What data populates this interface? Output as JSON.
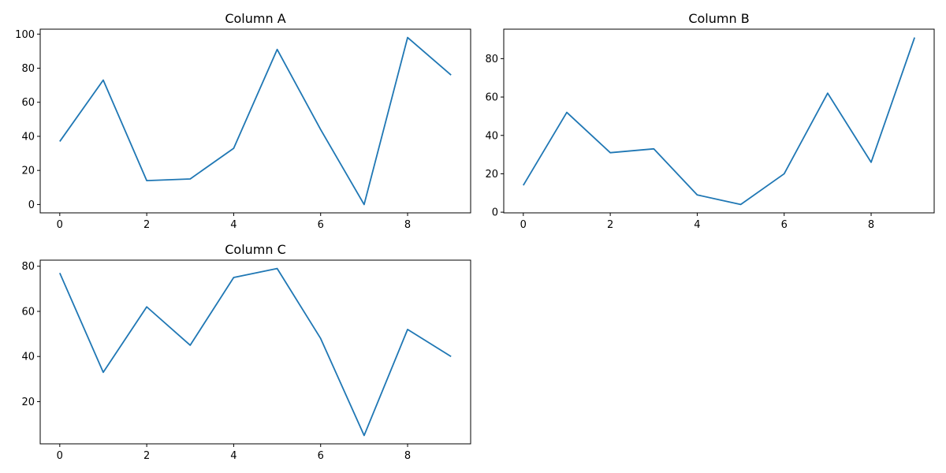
{
  "colors": {
    "line": "#1f77b4"
  },
  "chart_data": [
    {
      "type": "line",
      "title": "Column A",
      "x": [
        0,
        1,
        2,
        3,
        4,
        5,
        6,
        7,
        8,
        9
      ],
      "series": [
        {
          "values": [
            37,
            73,
            14,
            15,
            33,
            91,
            44,
            0,
            98,
            76
          ]
        }
      ],
      "xlim": [
        -0.45,
        9.45
      ],
      "ylim": [
        -4.9,
        102.9
      ],
      "xticks": [
        0,
        2,
        4,
        6,
        8
      ],
      "yticks": [
        0,
        20,
        40,
        60,
        80,
        100
      ],
      "xlabel": "",
      "ylabel": "",
      "grid": false
    },
    {
      "type": "line",
      "title": "Column B",
      "x": [
        0,
        1,
        2,
        3,
        4,
        5,
        6,
        7,
        8,
        9
      ],
      "series": [
        {
          "values": [
            14,
            52,
            31,
            33,
            9,
            4,
            20,
            62,
            26,
            91
          ]
        }
      ],
      "xlim": [
        -0.45,
        9.45
      ],
      "ylim": [
        -0.35,
        95.35
      ],
      "xticks": [
        0,
        2,
        4,
        6,
        8
      ],
      "yticks": [
        0,
        20,
        40,
        60,
        80
      ],
      "xlabel": "",
      "ylabel": "",
      "grid": false
    },
    {
      "type": "line",
      "title": "Column C",
      "x": [
        0,
        1,
        2,
        3,
        4,
        5,
        6,
        7,
        8,
        9
      ],
      "series": [
        {
          "values": [
            77,
            33,
            62,
            45,
            75,
            79,
            48,
            5,
            52,
            40
          ]
        }
      ],
      "xlim": [
        -0.45,
        9.45
      ],
      "ylim": [
        1.3,
        82.7
      ],
      "xticks": [
        0,
        2,
        4,
        6,
        8
      ],
      "yticks": [
        20,
        40,
        60,
        80
      ],
      "xlabel": "",
      "ylabel": "",
      "grid": false
    }
  ]
}
